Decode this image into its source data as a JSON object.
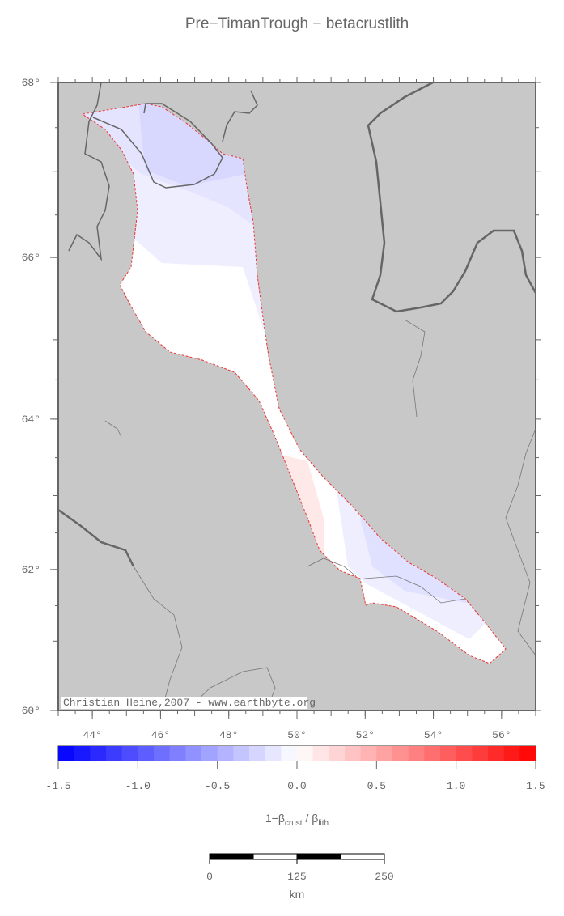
{
  "title": "Pre−TimanTrough − betacrustlith",
  "map": {
    "xlim": [
      43,
      57
    ],
    "ylim": [
      60,
      68
    ],
    "xticks": [
      {
        "value": 44,
        "label": "44°"
      },
      {
        "value": 46,
        "label": "46°"
      },
      {
        "value": 48,
        "label": "48°"
      },
      {
        "value": 50,
        "label": "50°"
      },
      {
        "value": 52,
        "label": "52°"
      },
      {
        "value": 54,
        "label": "54°"
      },
      {
        "value": 56,
        "label": "56°"
      }
    ],
    "yticks": [
      {
        "value": 60,
        "label": "60°"
      },
      {
        "value": 62,
        "label": "62°"
      },
      {
        "value": 64,
        "label": "64°"
      },
      {
        "value": 66,
        "label": "66°"
      },
      {
        "value": 68,
        "label": "68°"
      }
    ],
    "credit": "Christian Heine,2007 - www.earthbyte.org"
  },
  "colorbar": {
    "clim": [
      -1.5,
      1.5
    ],
    "ticks": [
      {
        "value": -1.5,
        "label": "-1.5"
      },
      {
        "value": -1,
        "label": "-1.0"
      },
      {
        "value": -0.5,
        "label": "-0.5"
      },
      {
        "value": 0,
        "label": "0.0"
      },
      {
        "value": 0.5,
        "label": "0.5"
      },
      {
        "value": 1,
        "label": "1.0"
      },
      {
        "value": 1.5,
        "label": "1.5"
      }
    ],
    "label": {
      "a": "1−β",
      "sub1": "crust",
      "b": " / β",
      "sub2": "lith"
    }
  },
  "scale_bar": {
    "ticks": [
      0,
      125,
      250
    ],
    "unit": "km"
  }
}
